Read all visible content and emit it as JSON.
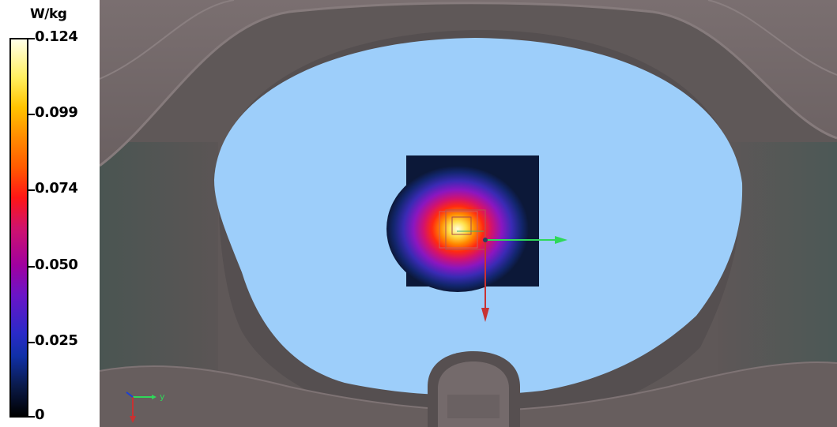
{
  "legend": {
    "unit": "W/kg",
    "ticks": [
      "0.124",
      "0.099",
      "0.074",
      "0.050",
      "0.025",
      "0"
    ]
  },
  "axis_triad": {
    "y_label": "y"
  },
  "colors": {
    "phantom_fill": "#9dcefa",
    "shell_body": "#6b6363",
    "sar_peak": "#ffffe0",
    "axis_green": "#2fd85a",
    "axis_red": "#c83232"
  }
}
